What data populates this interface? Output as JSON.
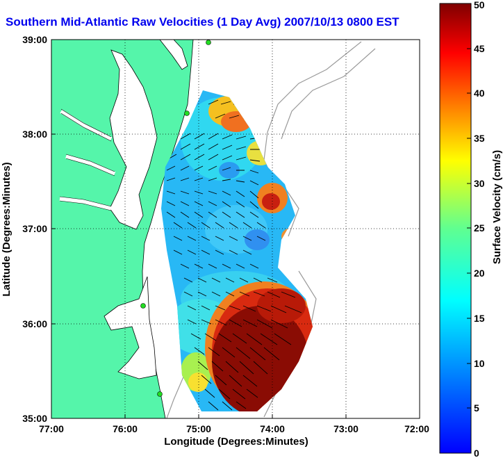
{
  "title": "Southern Mid-Atlantic Raw Velocities (1 Day Avg) 2007/10/13 0800 EST",
  "chart_data": {
    "type": "heatmap",
    "title": "Southern Mid-Atlantic Raw Velocities (1 Day Avg) 2007/10/13 0800 EST",
    "xlabel": "Longitude (Degrees:Minutes)",
    "ylabel": "Latitude (Degrees:Minutes)",
    "xlim": [
      -77,
      -72
    ],
    "ylim": [
      35,
      39
    ],
    "x_ticks": [
      -77,
      -76,
      -75,
      -74,
      -73,
      -72
    ],
    "x_tick_labels": [
      "77:00",
      "76:00",
      "75:00",
      "74:00",
      "73:00",
      "72:00"
    ],
    "y_ticks": [
      35,
      36,
      37,
      38,
      39
    ],
    "y_tick_labels": [
      "35:00",
      "36:00",
      "37:00",
      "38:00",
      "39:00"
    ],
    "grid": true,
    "colorbar": {
      "label": "Surface Velocity (cm/s)",
      "range": [
        0,
        50
      ],
      "ticks": [
        0,
        5,
        10,
        15,
        20,
        25,
        30,
        35,
        40,
        45,
        50
      ],
      "colormap": "jet"
    },
    "land_color": "#55f5aa",
    "coast_outline_color": "#000000",
    "bathymetry_color": "#9a9a9a"
  }
}
